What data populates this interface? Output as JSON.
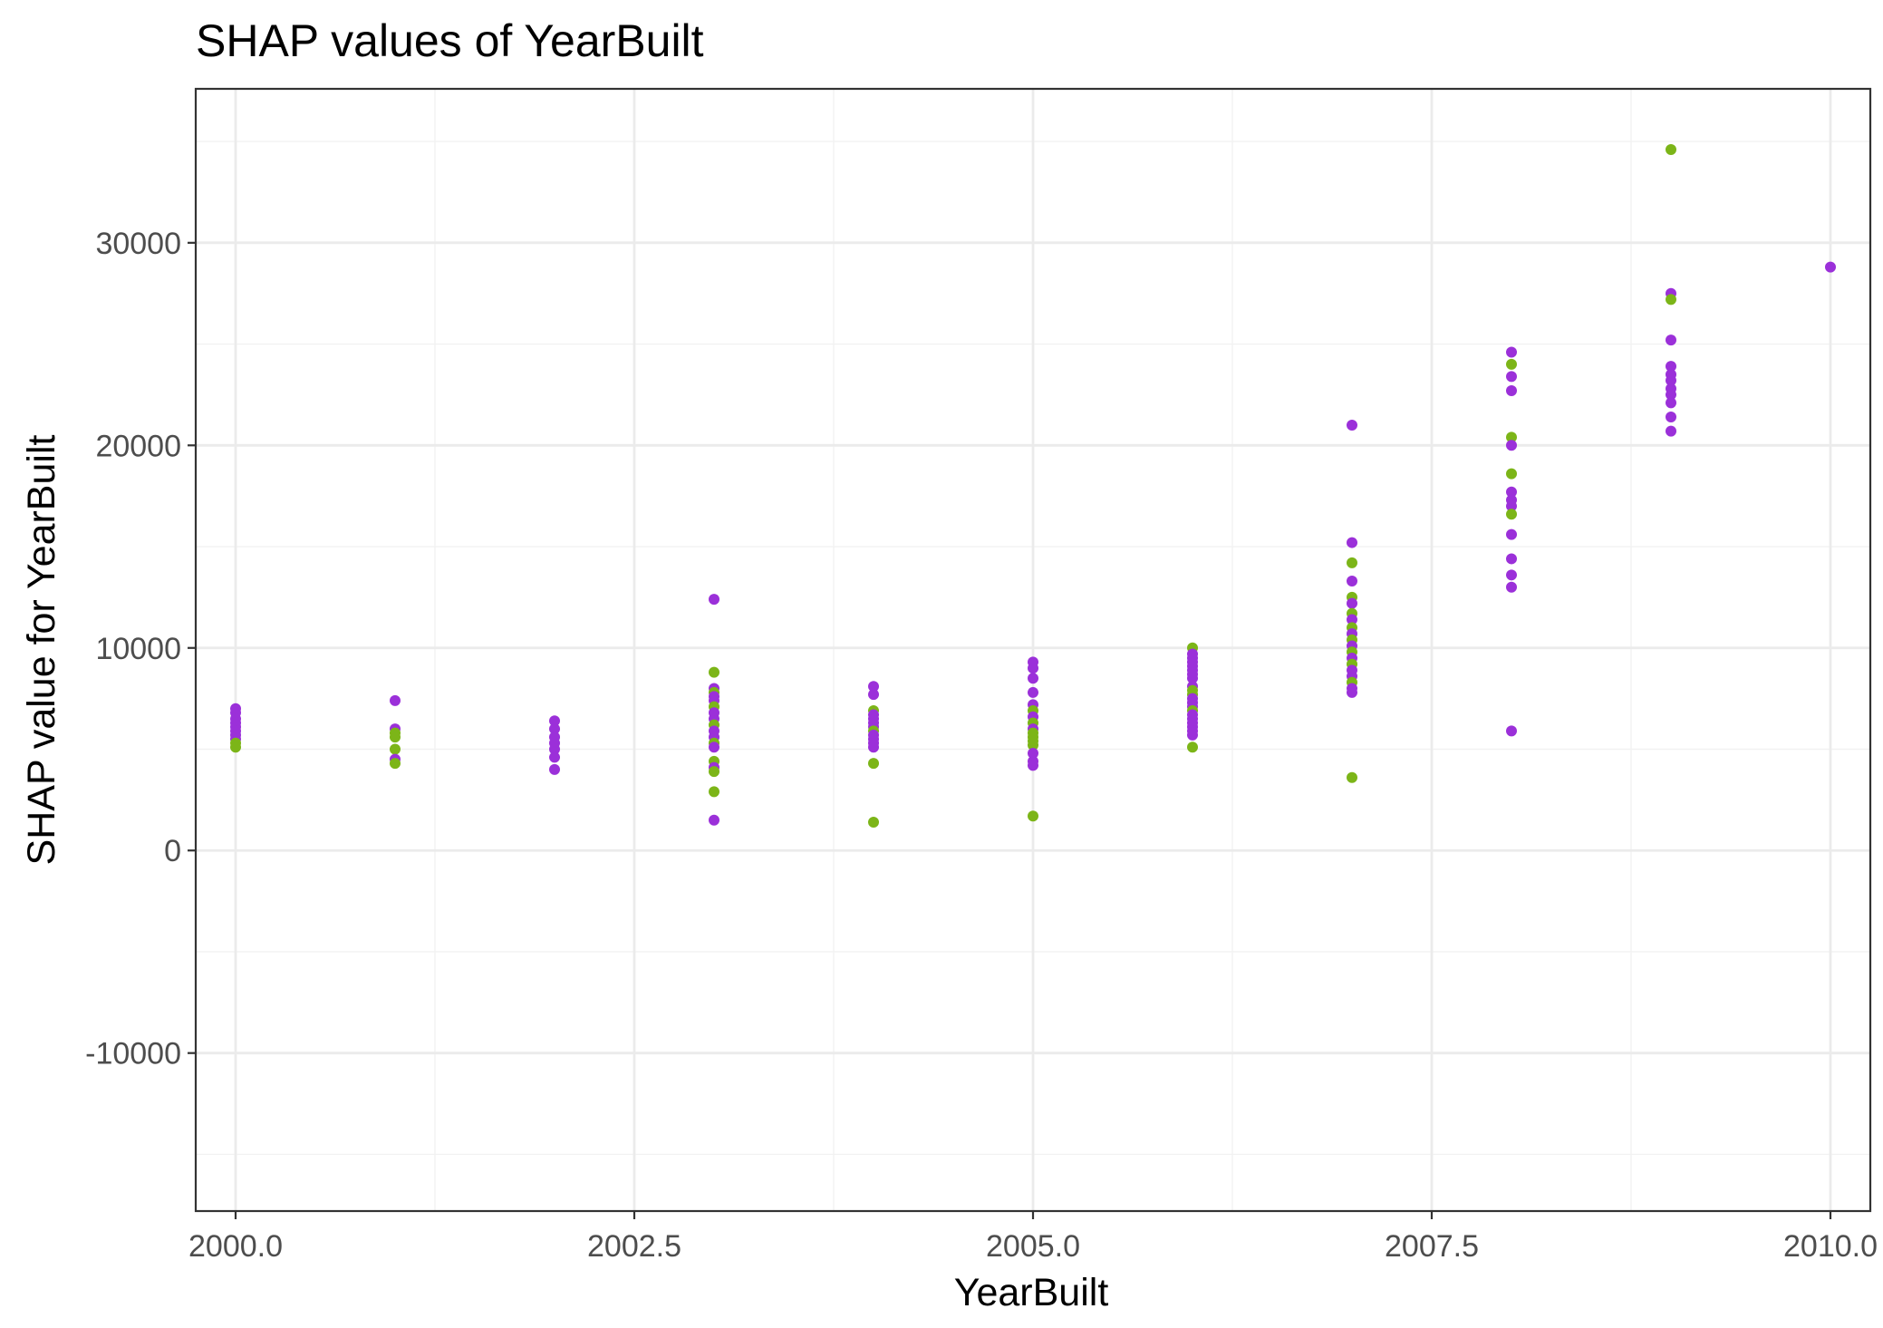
{
  "chart_data": {
    "type": "scatter",
    "title": "SHAP values of YearBuilt",
    "xlabel": "YearBuilt",
    "ylabel": "SHAP value for YearBuilt",
    "xlim": [
      1999.75,
      2010.25
    ],
    "ylim": [
      -17800,
      37600
    ],
    "x_ticks": [
      2000.0,
      2002.5,
      2005.0,
      2007.5,
      2010.0
    ],
    "x_tick_labels": [
      "2000.0",
      "2002.5",
      "2005.0",
      "2007.5",
      "2010.0"
    ],
    "y_ticks": [
      -10000,
      0,
      10000,
      20000,
      30000
    ],
    "y_tick_labels": [
      "-10000",
      "0",
      "10000",
      "20000",
      "30000"
    ],
    "grid": true,
    "legend": "none",
    "colors": {
      "purple": "#9b30d9",
      "green": "#7cb518"
    },
    "points": [
      {
        "x": 2000,
        "y": 7000,
        "c": "purple"
      },
      {
        "x": 2000,
        "y": 6800,
        "c": "purple"
      },
      {
        "x": 2000,
        "y": 6500,
        "c": "purple"
      },
      {
        "x": 2000,
        "y": 6300,
        "c": "purple"
      },
      {
        "x": 2000,
        "y": 6100,
        "c": "purple"
      },
      {
        "x": 2000,
        "y": 5900,
        "c": "purple"
      },
      {
        "x": 2000,
        "y": 5700,
        "c": "purple"
      },
      {
        "x": 2000,
        "y": 5500,
        "c": "purple"
      },
      {
        "x": 2000,
        "y": 5300,
        "c": "green"
      },
      {
        "x": 2000,
        "y": 5100,
        "c": "green"
      },
      {
        "x": 2001,
        "y": 7400,
        "c": "purple"
      },
      {
        "x": 2001,
        "y": 6000,
        "c": "purple"
      },
      {
        "x": 2001,
        "y": 5800,
        "c": "green"
      },
      {
        "x": 2001,
        "y": 5600,
        "c": "green"
      },
      {
        "x": 2001,
        "y": 5000,
        "c": "green"
      },
      {
        "x": 2001,
        "y": 4500,
        "c": "purple"
      },
      {
        "x": 2001,
        "y": 4300,
        "c": "green"
      },
      {
        "x": 2002,
        "y": 6400,
        "c": "purple"
      },
      {
        "x": 2002,
        "y": 6000,
        "c": "purple"
      },
      {
        "x": 2002,
        "y": 5600,
        "c": "purple"
      },
      {
        "x": 2002,
        "y": 5300,
        "c": "purple"
      },
      {
        "x": 2002,
        "y": 5000,
        "c": "purple"
      },
      {
        "x": 2002,
        "y": 4600,
        "c": "purple"
      },
      {
        "x": 2002,
        "y": 4000,
        "c": "purple"
      },
      {
        "x": 2003,
        "y": 12400,
        "c": "purple"
      },
      {
        "x": 2003,
        "y": 8800,
        "c": "green"
      },
      {
        "x": 2003,
        "y": 8000,
        "c": "purple"
      },
      {
        "x": 2003,
        "y": 7800,
        "c": "green"
      },
      {
        "x": 2003,
        "y": 7600,
        "c": "purple"
      },
      {
        "x": 2003,
        "y": 7400,
        "c": "purple"
      },
      {
        "x": 2003,
        "y": 7100,
        "c": "green"
      },
      {
        "x": 2003,
        "y": 6800,
        "c": "purple"
      },
      {
        "x": 2003,
        "y": 6500,
        "c": "purple"
      },
      {
        "x": 2003,
        "y": 6200,
        "c": "green"
      },
      {
        "x": 2003,
        "y": 5900,
        "c": "purple"
      },
      {
        "x": 2003,
        "y": 5600,
        "c": "purple"
      },
      {
        "x": 2003,
        "y": 5300,
        "c": "green"
      },
      {
        "x": 2003,
        "y": 5100,
        "c": "purple"
      },
      {
        "x": 2003,
        "y": 4400,
        "c": "green"
      },
      {
        "x": 2003,
        "y": 4100,
        "c": "purple"
      },
      {
        "x": 2003,
        "y": 3900,
        "c": "green"
      },
      {
        "x": 2003,
        "y": 2900,
        "c": "green"
      },
      {
        "x": 2003,
        "y": 1500,
        "c": "purple"
      },
      {
        "x": 2004,
        "y": 8100,
        "c": "purple"
      },
      {
        "x": 2004,
        "y": 7700,
        "c": "purple"
      },
      {
        "x": 2004,
        "y": 6900,
        "c": "green"
      },
      {
        "x": 2004,
        "y": 6700,
        "c": "purple"
      },
      {
        "x": 2004,
        "y": 6500,
        "c": "purple"
      },
      {
        "x": 2004,
        "y": 6300,
        "c": "purple"
      },
      {
        "x": 2004,
        "y": 6100,
        "c": "purple"
      },
      {
        "x": 2004,
        "y": 5900,
        "c": "green"
      },
      {
        "x": 2004,
        "y": 5700,
        "c": "purple"
      },
      {
        "x": 2004,
        "y": 5500,
        "c": "purple"
      },
      {
        "x": 2004,
        "y": 5300,
        "c": "purple"
      },
      {
        "x": 2004,
        "y": 5100,
        "c": "purple"
      },
      {
        "x": 2004,
        "y": 4300,
        "c": "green"
      },
      {
        "x": 2004,
        "y": 1400,
        "c": "green"
      },
      {
        "x": 2005,
        "y": 9300,
        "c": "purple"
      },
      {
        "x": 2005,
        "y": 9000,
        "c": "purple"
      },
      {
        "x": 2005,
        "y": 8500,
        "c": "purple"
      },
      {
        "x": 2005,
        "y": 7800,
        "c": "purple"
      },
      {
        "x": 2005,
        "y": 7200,
        "c": "purple"
      },
      {
        "x": 2005,
        "y": 6900,
        "c": "green"
      },
      {
        "x": 2005,
        "y": 6600,
        "c": "purple"
      },
      {
        "x": 2005,
        "y": 6300,
        "c": "green"
      },
      {
        "x": 2005,
        "y": 6000,
        "c": "purple"
      },
      {
        "x": 2005,
        "y": 5800,
        "c": "green"
      },
      {
        "x": 2005,
        "y": 5600,
        "c": "green"
      },
      {
        "x": 2005,
        "y": 5400,
        "c": "green"
      },
      {
        "x": 2005,
        "y": 5200,
        "c": "green"
      },
      {
        "x": 2005,
        "y": 4800,
        "c": "purple"
      },
      {
        "x": 2005,
        "y": 4400,
        "c": "purple"
      },
      {
        "x": 2005,
        "y": 4200,
        "c": "purple"
      },
      {
        "x": 2005,
        "y": 1700,
        "c": "green"
      },
      {
        "x": 2006,
        "y": 10000,
        "c": "green"
      },
      {
        "x": 2006,
        "y": 9700,
        "c": "purple"
      },
      {
        "x": 2006,
        "y": 9500,
        "c": "purple"
      },
      {
        "x": 2006,
        "y": 9300,
        "c": "purple"
      },
      {
        "x": 2006,
        "y": 9100,
        "c": "purple"
      },
      {
        "x": 2006,
        "y": 8900,
        "c": "purple"
      },
      {
        "x": 2006,
        "y": 8700,
        "c": "purple"
      },
      {
        "x": 2006,
        "y": 8500,
        "c": "purple"
      },
      {
        "x": 2006,
        "y": 8100,
        "c": "purple"
      },
      {
        "x": 2006,
        "y": 7900,
        "c": "green"
      },
      {
        "x": 2006,
        "y": 7700,
        "c": "green"
      },
      {
        "x": 2006,
        "y": 7500,
        "c": "purple"
      },
      {
        "x": 2006,
        "y": 7300,
        "c": "purple"
      },
      {
        "x": 2006,
        "y": 7100,
        "c": "purple"
      },
      {
        "x": 2006,
        "y": 6900,
        "c": "green"
      },
      {
        "x": 2006,
        "y": 6700,
        "c": "purple"
      },
      {
        "x": 2006,
        "y": 6500,
        "c": "purple"
      },
      {
        "x": 2006,
        "y": 6300,
        "c": "purple"
      },
      {
        "x": 2006,
        "y": 6100,
        "c": "purple"
      },
      {
        "x": 2006,
        "y": 5900,
        "c": "purple"
      },
      {
        "x": 2006,
        "y": 5700,
        "c": "purple"
      },
      {
        "x": 2006,
        "y": 5100,
        "c": "green"
      },
      {
        "x": 2007,
        "y": 21000,
        "c": "purple"
      },
      {
        "x": 2007,
        "y": 15200,
        "c": "purple"
      },
      {
        "x": 2007,
        "y": 14200,
        "c": "green"
      },
      {
        "x": 2007,
        "y": 13300,
        "c": "purple"
      },
      {
        "x": 2007,
        "y": 12500,
        "c": "green"
      },
      {
        "x": 2007,
        "y": 12200,
        "c": "purple"
      },
      {
        "x": 2007,
        "y": 11700,
        "c": "green"
      },
      {
        "x": 2007,
        "y": 11400,
        "c": "purple"
      },
      {
        "x": 2007,
        "y": 11000,
        "c": "green"
      },
      {
        "x": 2007,
        "y": 10700,
        "c": "purple"
      },
      {
        "x": 2007,
        "y": 10400,
        "c": "green"
      },
      {
        "x": 2007,
        "y": 10100,
        "c": "purple"
      },
      {
        "x": 2007,
        "y": 9800,
        "c": "green"
      },
      {
        "x": 2007,
        "y": 9500,
        "c": "purple"
      },
      {
        "x": 2007,
        "y": 9200,
        "c": "green"
      },
      {
        "x": 2007,
        "y": 8900,
        "c": "purple"
      },
      {
        "x": 2007,
        "y": 8600,
        "c": "purple"
      },
      {
        "x": 2007,
        "y": 8300,
        "c": "green"
      },
      {
        "x": 2007,
        "y": 8000,
        "c": "purple"
      },
      {
        "x": 2007,
        "y": 7800,
        "c": "purple"
      },
      {
        "x": 2007,
        "y": 3600,
        "c": "green"
      },
      {
        "x": 2008,
        "y": 24600,
        "c": "purple"
      },
      {
        "x": 2008,
        "y": 24000,
        "c": "green"
      },
      {
        "x": 2008,
        "y": 23400,
        "c": "purple"
      },
      {
        "x": 2008,
        "y": 22700,
        "c": "purple"
      },
      {
        "x": 2008,
        "y": 20400,
        "c": "green"
      },
      {
        "x": 2008,
        "y": 20000,
        "c": "purple"
      },
      {
        "x": 2008,
        "y": 18600,
        "c": "green"
      },
      {
        "x": 2008,
        "y": 17700,
        "c": "purple"
      },
      {
        "x": 2008,
        "y": 17300,
        "c": "purple"
      },
      {
        "x": 2008,
        "y": 17000,
        "c": "purple"
      },
      {
        "x": 2008,
        "y": 16600,
        "c": "green"
      },
      {
        "x": 2008,
        "y": 15600,
        "c": "purple"
      },
      {
        "x": 2008,
        "y": 14400,
        "c": "purple"
      },
      {
        "x": 2008,
        "y": 13600,
        "c": "purple"
      },
      {
        "x": 2008,
        "y": 13000,
        "c": "purple"
      },
      {
        "x": 2008,
        "y": 5900,
        "c": "purple"
      },
      {
        "x": 2009,
        "y": 34600,
        "c": "green"
      },
      {
        "x": 2009,
        "y": 27500,
        "c": "purple"
      },
      {
        "x": 2009,
        "y": 27200,
        "c": "green"
      },
      {
        "x": 2009,
        "y": 25200,
        "c": "purple"
      },
      {
        "x": 2009,
        "y": 23900,
        "c": "purple"
      },
      {
        "x": 2009,
        "y": 23500,
        "c": "purple"
      },
      {
        "x": 2009,
        "y": 23200,
        "c": "purple"
      },
      {
        "x": 2009,
        "y": 22800,
        "c": "purple"
      },
      {
        "x": 2009,
        "y": 22500,
        "c": "purple"
      },
      {
        "x": 2009,
        "y": 22100,
        "c": "purple"
      },
      {
        "x": 2009,
        "y": 21400,
        "c": "purple"
      },
      {
        "x": 2009,
        "y": 20700,
        "c": "purple"
      },
      {
        "x": 2010,
        "y": 28800,
        "c": "purple"
      }
    ]
  }
}
